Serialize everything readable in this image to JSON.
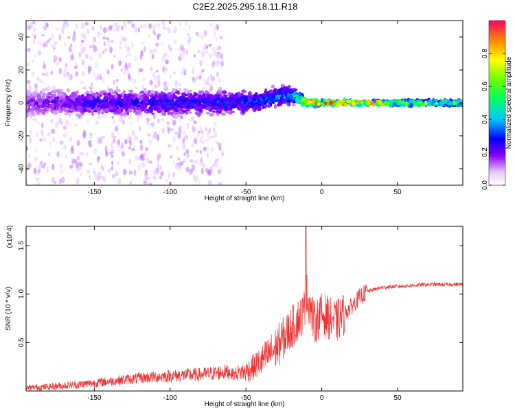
{
  "title": "C2E2.2025.295.18.11.R18",
  "chart_data": [
    {
      "type": "heatmap",
      "name": "spectrogram",
      "xlabel": "Height of straight line (km)",
      "ylabel": "Frequency (Hz)",
      "xlim": [
        -195,
        93
      ],
      "ylim": [
        -50,
        50
      ],
      "xticks": [
        -150,
        -100,
        -50,
        0,
        50
      ],
      "yticks": [
        -40,
        -20,
        0,
        20,
        40
      ],
      "colorbar": {
        "label": "Normalized spectral amplitude",
        "range": [
          0.0,
          1.0
        ],
        "ticks": [
          "0.0",
          "0.2",
          "0.4",
          "0.6",
          "0.8"
        ],
        "tick_values": [
          0.0,
          0.2,
          0.4,
          0.6,
          0.8
        ]
      },
      "bands": [
        {
          "x": -190,
          "center_freq": 0,
          "half_width": 8,
          "amplitude": 0.15
        },
        {
          "x": -150,
          "center_freq": 0,
          "half_width": 7,
          "amplitude": 0.2
        },
        {
          "x": -100,
          "center_freq": 0,
          "half_width": 7,
          "amplitude": 0.22
        },
        {
          "x": -50,
          "center_freq": 0,
          "half_width": 6,
          "amplitude": 0.25
        },
        {
          "x": -20,
          "center_freq": 5,
          "half_width": 5,
          "amplitude": 0.3
        },
        {
          "x": -10,
          "center_freq": 0,
          "half_width": 2,
          "amplitude": 0.7
        },
        {
          "x": 0,
          "center_freq": 0,
          "half_width": 1.5,
          "amplitude": 0.8
        },
        {
          "x": 20,
          "center_freq": 0,
          "half_width": 1.5,
          "amplitude": 0.75
        },
        {
          "x": 50,
          "center_freq": 0,
          "half_width": 1.5,
          "amplitude": 0.55
        },
        {
          "x": 90,
          "center_freq": 0,
          "half_width": 1.5,
          "amplitude": 0.45
        }
      ]
    },
    {
      "type": "line",
      "name": "snr",
      "xlabel": "Height of straight line (km)",
      "ylabel": "SNR (10 * v/v)",
      "yscale_label": "(x10^4)",
      "xlim": [
        -195,
        93
      ],
      "ylim": [
        0,
        1.7
      ],
      "xticks": [
        -150,
        -100,
        -50,
        0,
        50
      ],
      "yticks": [
        "0.5",
        "1.0",
        "1.5"
      ],
      "ytick_values": [
        0.5,
        1.0,
        1.5
      ],
      "color": "#ee3333",
      "series": [
        {
          "name": "SNR",
          "x": [
            -195,
            -180,
            -160,
            -140,
            -120,
            -100,
            -80,
            -60,
            -50,
            -40,
            -30,
            -25,
            -20,
            -15,
            -12,
            -10,
            -8,
            -5,
            0,
            5,
            10,
            15,
            20,
            25,
            30,
            40,
            50,
            60,
            70,
            80,
            93
          ],
          "y": [
            0.02,
            0.03,
            0.05,
            0.08,
            0.11,
            0.13,
            0.14,
            0.17,
            0.2,
            0.3,
            0.45,
            0.55,
            0.65,
            0.75,
            0.8,
            1.0,
            0.9,
            0.7,
            0.8,
            0.75,
            0.72,
            0.8,
            0.88,
            0.97,
            1.03,
            1.07,
            1.08,
            1.09,
            1.1,
            1.1,
            1.1
          ]
        }
      ]
    }
  ]
}
